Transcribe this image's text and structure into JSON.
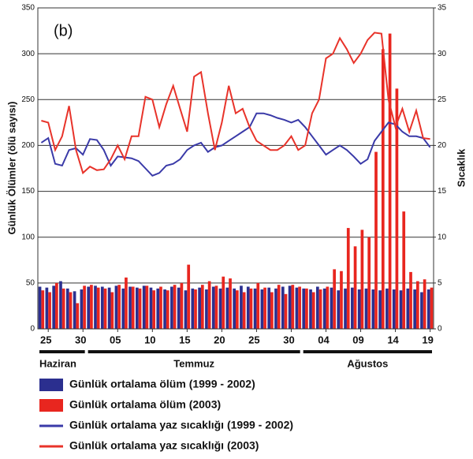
{
  "chart_data": {
    "type": "bar",
    "annotation": "(b)",
    "ylabel": "Günlük Ölümler (ölü sayısı)",
    "y2label": "Sıcaklık",
    "categories": [
      null,
      "25",
      null,
      null,
      null,
      null,
      "30",
      null,
      null,
      null,
      null,
      "05",
      null,
      null,
      null,
      null,
      "10",
      null,
      null,
      null,
      null,
      "15",
      null,
      null,
      null,
      null,
      "20",
      null,
      null,
      null,
      null,
      "25",
      null,
      null,
      null,
      null,
      "30",
      null,
      null,
      null,
      null,
      "04",
      null,
      null,
      null,
      null,
      "09",
      null,
      null,
      null,
      null,
      "14",
      null,
      null,
      null,
      null,
      "19"
    ],
    "months": [
      "Haziran",
      "Temmuz",
      "Ağustos"
    ],
    "ylim": [
      0,
      350
    ],
    "yticks": [
      0,
      50,
      100,
      150,
      200,
      250,
      300,
      350
    ],
    "y2lim": [
      0,
      35
    ],
    "y2ticks": [
      0,
      5,
      10,
      15,
      20,
      25,
      30,
      35
    ],
    "grid": true,
    "series": [
      {
        "name": "Günlük ortalama ölüm (1999 - 2002)",
        "type": "bar",
        "color": "#2b2f8f",
        "values": [
          46,
          45,
          47,
          52,
          44,
          41,
          43,
          46,
          47,
          46,
          45,
          47,
          44,
          46,
          45,
          47,
          45,
          44,
          43,
          46,
          45,
          42,
          44,
          45,
          43,
          46,
          44,
          45,
          44,
          47,
          46,
          44,
          43,
          45,
          44,
          46,
          47,
          45,
          44,
          43,
          46,
          44,
          45,
          42,
          44,
          45,
          43,
          44,
          43,
          42,
          44,
          43,
          42,
          44,
          43,
          40,
          43
        ]
      },
      {
        "name": "Günlük ortalama ölüm (2003)",
        "type": "bar",
        "color": "#e8261f",
        "values": [
          42,
          40,
          50,
          44,
          40,
          28,
          47,
          48,
          45,
          44,
          40,
          48,
          56,
          46,
          44,
          47,
          42,
          46,
          42,
          48,
          50,
          70,
          43,
          48,
          52,
          47,
          57,
          55,
          42,
          40,
          44,
          50,
          45,
          40,
          48,
          38,
          48,
          46,
          44,
          40,
          43,
          46,
          65,
          63,
          110,
          90,
          108,
          100,
          193,
          305,
          322,
          262,
          128,
          62,
          52,
          54,
          45
        ]
      },
      {
        "name": "Günlük ortalama yaz sıcaklığı (1999 - 2002)",
        "type": "line",
        "axis": "y2",
        "color": "#3a3aa8",
        "values": [
          20.3,
          20.8,
          18,
          17.8,
          19.5,
          19.7,
          19,
          20.7,
          20.6,
          19.5,
          17.8,
          18.8,
          18.7,
          18.6,
          18.3,
          17.5,
          16.7,
          17,
          17.8,
          18,
          18.5,
          19.5,
          20,
          20.3,
          19.3,
          19.8,
          20,
          20.5,
          21,
          21.5,
          22,
          23.5,
          23.5,
          23.3,
          23,
          22.8,
          22.5,
          22.8,
          22,
          21,
          20,
          19,
          19.5,
          20,
          19.5,
          18.8,
          18,
          18.5,
          20.5,
          21.5,
          22.5,
          22.3,
          21.5,
          21,
          21,
          20.8,
          19.8
        ]
      },
      {
        "name": "Günlük ortalama yaz sıcaklığı (2003)",
        "type": "line",
        "axis": "y2",
        "color": "#e8332a",
        "values": [
          22.7,
          22.5,
          19.5,
          21,
          24.3,
          19.5,
          17,
          17.7,
          17.3,
          17.4,
          18.5,
          20,
          18.5,
          21,
          21,
          25.3,
          25,
          22,
          24.5,
          26.5,
          24,
          21.5,
          27.5,
          28,
          23.5,
          19.5,
          22.5,
          26.5,
          23.5,
          24,
          22,
          20.5,
          20,
          19.5,
          19.5,
          20,
          21,
          19.5,
          20,
          23.5,
          25,
          29.5,
          30,
          31.7,
          30.5,
          29,
          30,
          31.5,
          32.3,
          32.2,
          25,
          22,
          24,
          21.5,
          23.8,
          20.8,
          20.7
        ]
      }
    ]
  }
}
